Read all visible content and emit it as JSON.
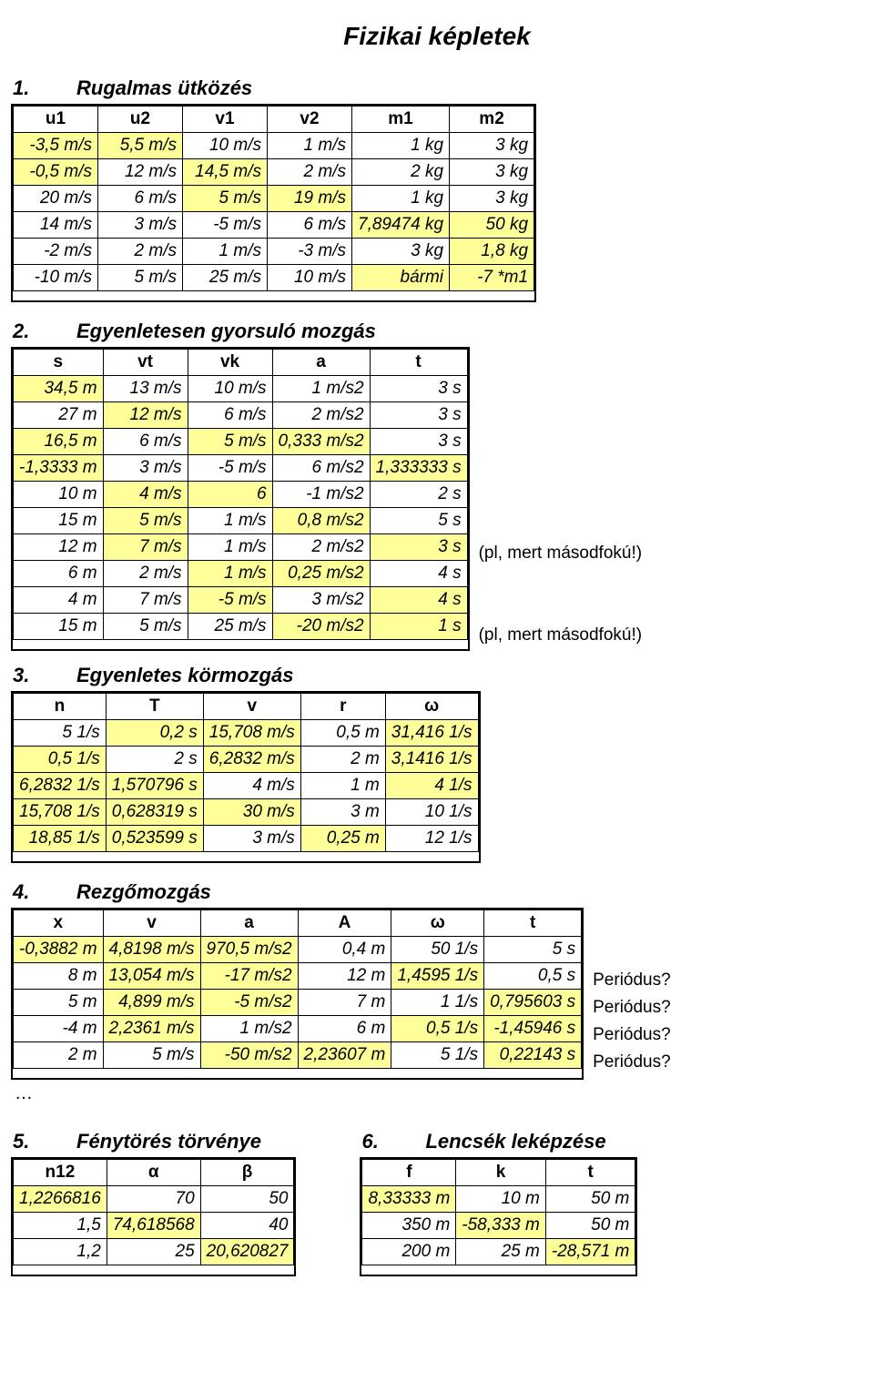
{
  "page_title": "Fizikai képletek",
  "hl_color": "#ffff99",
  "sections": {
    "s1": {
      "num": "1.",
      "title": "Rugalmas ütközés"
    },
    "s2": {
      "num": "2.",
      "title": "Egyenletesen gyorsuló mozgás"
    },
    "s3": {
      "num": "3.",
      "title": "Egyenletes körmozgás"
    },
    "s4": {
      "num": "4.",
      "title": "Rezgőmozgás"
    },
    "s5": {
      "num": "5.",
      "title": "Fénytörés törvénye"
    },
    "s6": {
      "num": "6.",
      "title": "Lencsék leképzése"
    }
  },
  "t1": {
    "headers": [
      "u1",
      "u2",
      "v1",
      "v2",
      "m1",
      "m2"
    ],
    "rows": [
      [
        {
          "v": "-3,5 m/s",
          "h": 1
        },
        {
          "v": "5,5 m/s",
          "h": 1
        },
        {
          "v": "10 m/s",
          "h": 0
        },
        {
          "v": "1 m/s",
          "h": 0
        },
        {
          "v": "1 kg",
          "h": 0
        },
        {
          "v": "3 kg",
          "h": 0
        }
      ],
      [
        {
          "v": "-0,5 m/s",
          "h": 1
        },
        {
          "v": "12 m/s",
          "h": 0
        },
        {
          "v": "14,5 m/s",
          "h": 1
        },
        {
          "v": "2 m/s",
          "h": 0
        },
        {
          "v": "2 kg",
          "h": 0
        },
        {
          "v": "3 kg",
          "h": 0
        }
      ],
      [
        {
          "v": "20 m/s",
          "h": 0
        },
        {
          "v": "6 m/s",
          "h": 0
        },
        {
          "v": "5 m/s",
          "h": 1
        },
        {
          "v": "19 m/s",
          "h": 1
        },
        {
          "v": "1 kg",
          "h": 0
        },
        {
          "v": "3 kg",
          "h": 0
        }
      ],
      [
        {
          "v": "14 m/s",
          "h": 0
        },
        {
          "v": "3 m/s",
          "h": 0
        },
        {
          "v": "-5 m/s",
          "h": 0
        },
        {
          "v": "6 m/s",
          "h": 0
        },
        {
          "v": "7,89474 kg",
          "h": 1
        },
        {
          "v": "50 kg",
          "h": 1
        }
      ],
      [
        {
          "v": "-2 m/s",
          "h": 0
        },
        {
          "v": "2 m/s",
          "h": 0
        },
        {
          "v": "1 m/s",
          "h": 0
        },
        {
          "v": "-3 m/s",
          "h": 0
        },
        {
          "v": "3 kg",
          "h": 0
        },
        {
          "v": "1,8 kg",
          "h": 1
        }
      ],
      [
        {
          "v": "-10 m/s",
          "h": 0
        },
        {
          "v": "5 m/s",
          "h": 0
        },
        {
          "v": "25 m/s",
          "h": 0
        },
        {
          "v": "10 m/s",
          "h": 0
        },
        {
          "v": "bármi",
          "h": 1
        },
        {
          "v": "-7 *m1",
          "h": 1
        }
      ]
    ]
  },
  "t2": {
    "headers": [
      "s",
      "vt",
      "vk",
      "a",
      "t"
    ],
    "rows": [
      [
        {
          "v": "34,5 m",
          "h": 1
        },
        {
          "v": "13 m/s",
          "h": 0
        },
        {
          "v": "10 m/s",
          "h": 0
        },
        {
          "v": "1 m/s2",
          "h": 0
        },
        {
          "v": "3 s",
          "h": 0
        }
      ],
      [
        {
          "v": "27 m",
          "h": 0
        },
        {
          "v": "12 m/s",
          "h": 1
        },
        {
          "v": "6 m/s",
          "h": 0
        },
        {
          "v": "2 m/s2",
          "h": 0
        },
        {
          "v": "3 s",
          "h": 0
        }
      ],
      [
        {
          "v": "16,5 m",
          "h": 1
        },
        {
          "v": "6 m/s",
          "h": 0
        },
        {
          "v": "5 m/s",
          "h": 1
        },
        {
          "v": "0,333 m/s2",
          "h": 1
        },
        {
          "v": "3 s",
          "h": 0
        }
      ],
      [
        {
          "v": "-1,3333 m",
          "h": 1
        },
        {
          "v": "3 m/s",
          "h": 0
        },
        {
          "v": "-5 m/s",
          "h": 0
        },
        {
          "v": "6 m/s2",
          "h": 0
        },
        {
          "v": "1,333333 s",
          "h": 1
        }
      ],
      [
        {
          "v": "10 m",
          "h": 0
        },
        {
          "v": "4 m/s",
          "h": 1
        },
        {
          "v": "6",
          "h": 1
        },
        {
          "v": "-1 m/s2",
          "h": 0
        },
        {
          "v": "2 s",
          "h": 0
        }
      ],
      [
        {
          "v": "15 m",
          "h": 0
        },
        {
          "v": "5 m/s",
          "h": 1
        },
        {
          "v": "1 m/s",
          "h": 0
        },
        {
          "v": "0,8 m/s2",
          "h": 1
        },
        {
          "v": "5 s",
          "h": 0
        }
      ],
      [
        {
          "v": "12 m",
          "h": 0
        },
        {
          "v": "7 m/s",
          "h": 1
        },
        {
          "v": "1 m/s",
          "h": 0
        },
        {
          "v": "2 m/s2",
          "h": 0
        },
        {
          "v": "3 s",
          "h": 1
        }
      ],
      [
        {
          "v": "6 m",
          "h": 0
        },
        {
          "v": "2 m/s",
          "h": 0
        },
        {
          "v": "1 m/s",
          "h": 1
        },
        {
          "v": "0,25 m/s2",
          "h": 1
        },
        {
          "v": "4 s",
          "h": 0
        }
      ],
      [
        {
          "v": "4 m",
          "h": 0
        },
        {
          "v": "7 m/s",
          "h": 0
        },
        {
          "v": "-5 m/s",
          "h": 1
        },
        {
          "v": "3 m/s2",
          "h": 0
        },
        {
          "v": "4 s",
          "h": 1
        }
      ],
      [
        {
          "v": "15 m",
          "h": 0
        },
        {
          "v": "5 m/s",
          "h": 0
        },
        {
          "v": "25 m/s",
          "h": 0
        },
        {
          "v": "-20 m/s2",
          "h": 1
        },
        {
          "v": "1 s",
          "h": 1
        }
      ]
    ],
    "notes": {
      "6": "(pl, mert másodfokú!)",
      "9": "(pl, mert másodfokú!)"
    }
  },
  "t3": {
    "headers": [
      "n",
      "T",
      "v",
      "r",
      "ω"
    ],
    "rows": [
      [
        {
          "v": "5 1/s",
          "h": 0
        },
        {
          "v": "0,2 s",
          "h": 1
        },
        {
          "v": "15,708 m/s",
          "h": 1
        },
        {
          "v": "0,5 m",
          "h": 0
        },
        {
          "v": "31,416 1/s",
          "h": 1
        }
      ],
      [
        {
          "v": "0,5 1/s",
          "h": 1
        },
        {
          "v": "2 s",
          "h": 0
        },
        {
          "v": "6,2832 m/s",
          "h": 1
        },
        {
          "v": "2 m",
          "h": 0
        },
        {
          "v": "3,1416 1/s",
          "h": 1
        }
      ],
      [
        {
          "v": "6,2832 1/s",
          "h": 1
        },
        {
          "v": "1,570796 s",
          "h": 1
        },
        {
          "v": "4 m/s",
          "h": 0
        },
        {
          "v": "1 m",
          "h": 0
        },
        {
          "v": "4 1/s",
          "h": 1
        }
      ],
      [
        {
          "v": "15,708 1/s",
          "h": 1
        },
        {
          "v": "0,628319 s",
          "h": 1
        },
        {
          "v": "30 m/s",
          "h": 1
        },
        {
          "v": "3 m",
          "h": 0
        },
        {
          "v": "10 1/s",
          "h": 0
        }
      ],
      [
        {
          "v": "18,85 1/s",
          "h": 1
        },
        {
          "v": "0,523599 s",
          "h": 1
        },
        {
          "v": "3 m/s",
          "h": 0
        },
        {
          "v": "0,25 m",
          "h": 1
        },
        {
          "v": "12 1/s",
          "h": 0
        }
      ]
    ]
  },
  "t4": {
    "headers": [
      "x",
      "v",
      "a",
      "A",
      "ω",
      "t"
    ],
    "rows": [
      [
        {
          "v": "-0,3882 m",
          "h": 1
        },
        {
          "v": "4,8198 m/s",
          "h": 1
        },
        {
          "v": "970,5 m/s2",
          "h": 1
        },
        {
          "v": "0,4 m",
          "h": 0
        },
        {
          "v": "50 1/s",
          "h": 0
        },
        {
          "v": "5 s",
          "h": 0
        }
      ],
      [
        {
          "v": "8 m",
          "h": 0
        },
        {
          "v": "13,054 m/s",
          "h": 1
        },
        {
          "v": "-17 m/s2",
          "h": 1
        },
        {
          "v": "12 m",
          "h": 0
        },
        {
          "v": "1,4595 1/s",
          "h": 1
        },
        {
          "v": "0,5 s",
          "h": 0
        }
      ],
      [
        {
          "v": "5 m",
          "h": 0
        },
        {
          "v": "4,899 m/s",
          "h": 1
        },
        {
          "v": "-5 m/s2",
          "h": 1
        },
        {
          "v": "7 m",
          "h": 0
        },
        {
          "v": "1 1/s",
          "h": 0
        },
        {
          "v": "0,795603 s",
          "h": 1
        }
      ],
      [
        {
          "v": "-4 m",
          "h": 0
        },
        {
          "v": "2,2361 m/s",
          "h": 1
        },
        {
          "v": "1 m/s2",
          "h": 0
        },
        {
          "v": "6 m",
          "h": 0
        },
        {
          "v": "0,5 1/s",
          "h": 1
        },
        {
          "v": "-1,45946 s",
          "h": 1
        }
      ],
      [
        {
          "v": "2 m",
          "h": 0
        },
        {
          "v": "5 m/s",
          "h": 0
        },
        {
          "v": "-50 m/s2",
          "h": 1
        },
        {
          "v": "2,23607 m",
          "h": 1
        },
        {
          "v": "5 1/s",
          "h": 0
        },
        {
          "v": "0,22143 s",
          "h": 1
        }
      ]
    ],
    "notes": {
      "1": "Periódus?",
      "2": "Periódus?",
      "3": "Periódus?",
      "4": "Periódus?"
    }
  },
  "t5": {
    "headers": [
      "n12",
      "α",
      "β"
    ],
    "rows": [
      [
        {
          "v": "1,2266816",
          "h": 1
        },
        {
          "v": "70",
          "h": 0
        },
        {
          "v": "50",
          "h": 0
        }
      ],
      [
        {
          "v": "1,5",
          "h": 0
        },
        {
          "v": "74,618568",
          "h": 1
        },
        {
          "v": "40",
          "h": 0
        }
      ],
      [
        {
          "v": "1,2",
          "h": 0
        },
        {
          "v": "25",
          "h": 0
        },
        {
          "v": "20,620827",
          "h": 1
        }
      ]
    ]
  },
  "t6": {
    "headers": [
      "f",
      "k",
      "t"
    ],
    "rows": [
      [
        {
          "v": "8,33333 m",
          "h": 1
        },
        {
          "v": "10 m",
          "h": 0
        },
        {
          "v": "50 m",
          "h": 0
        }
      ],
      [
        {
          "v": "350 m",
          "h": 0
        },
        {
          "v": "-58,333 m",
          "h": 1
        },
        {
          "v": "50 m",
          "h": 0
        }
      ],
      [
        {
          "v": "200 m",
          "h": 0
        },
        {
          "v": "25 m",
          "h": 0
        },
        {
          "v": "-28,571 m",
          "h": 1
        }
      ]
    ]
  },
  "ellipsis": "…"
}
